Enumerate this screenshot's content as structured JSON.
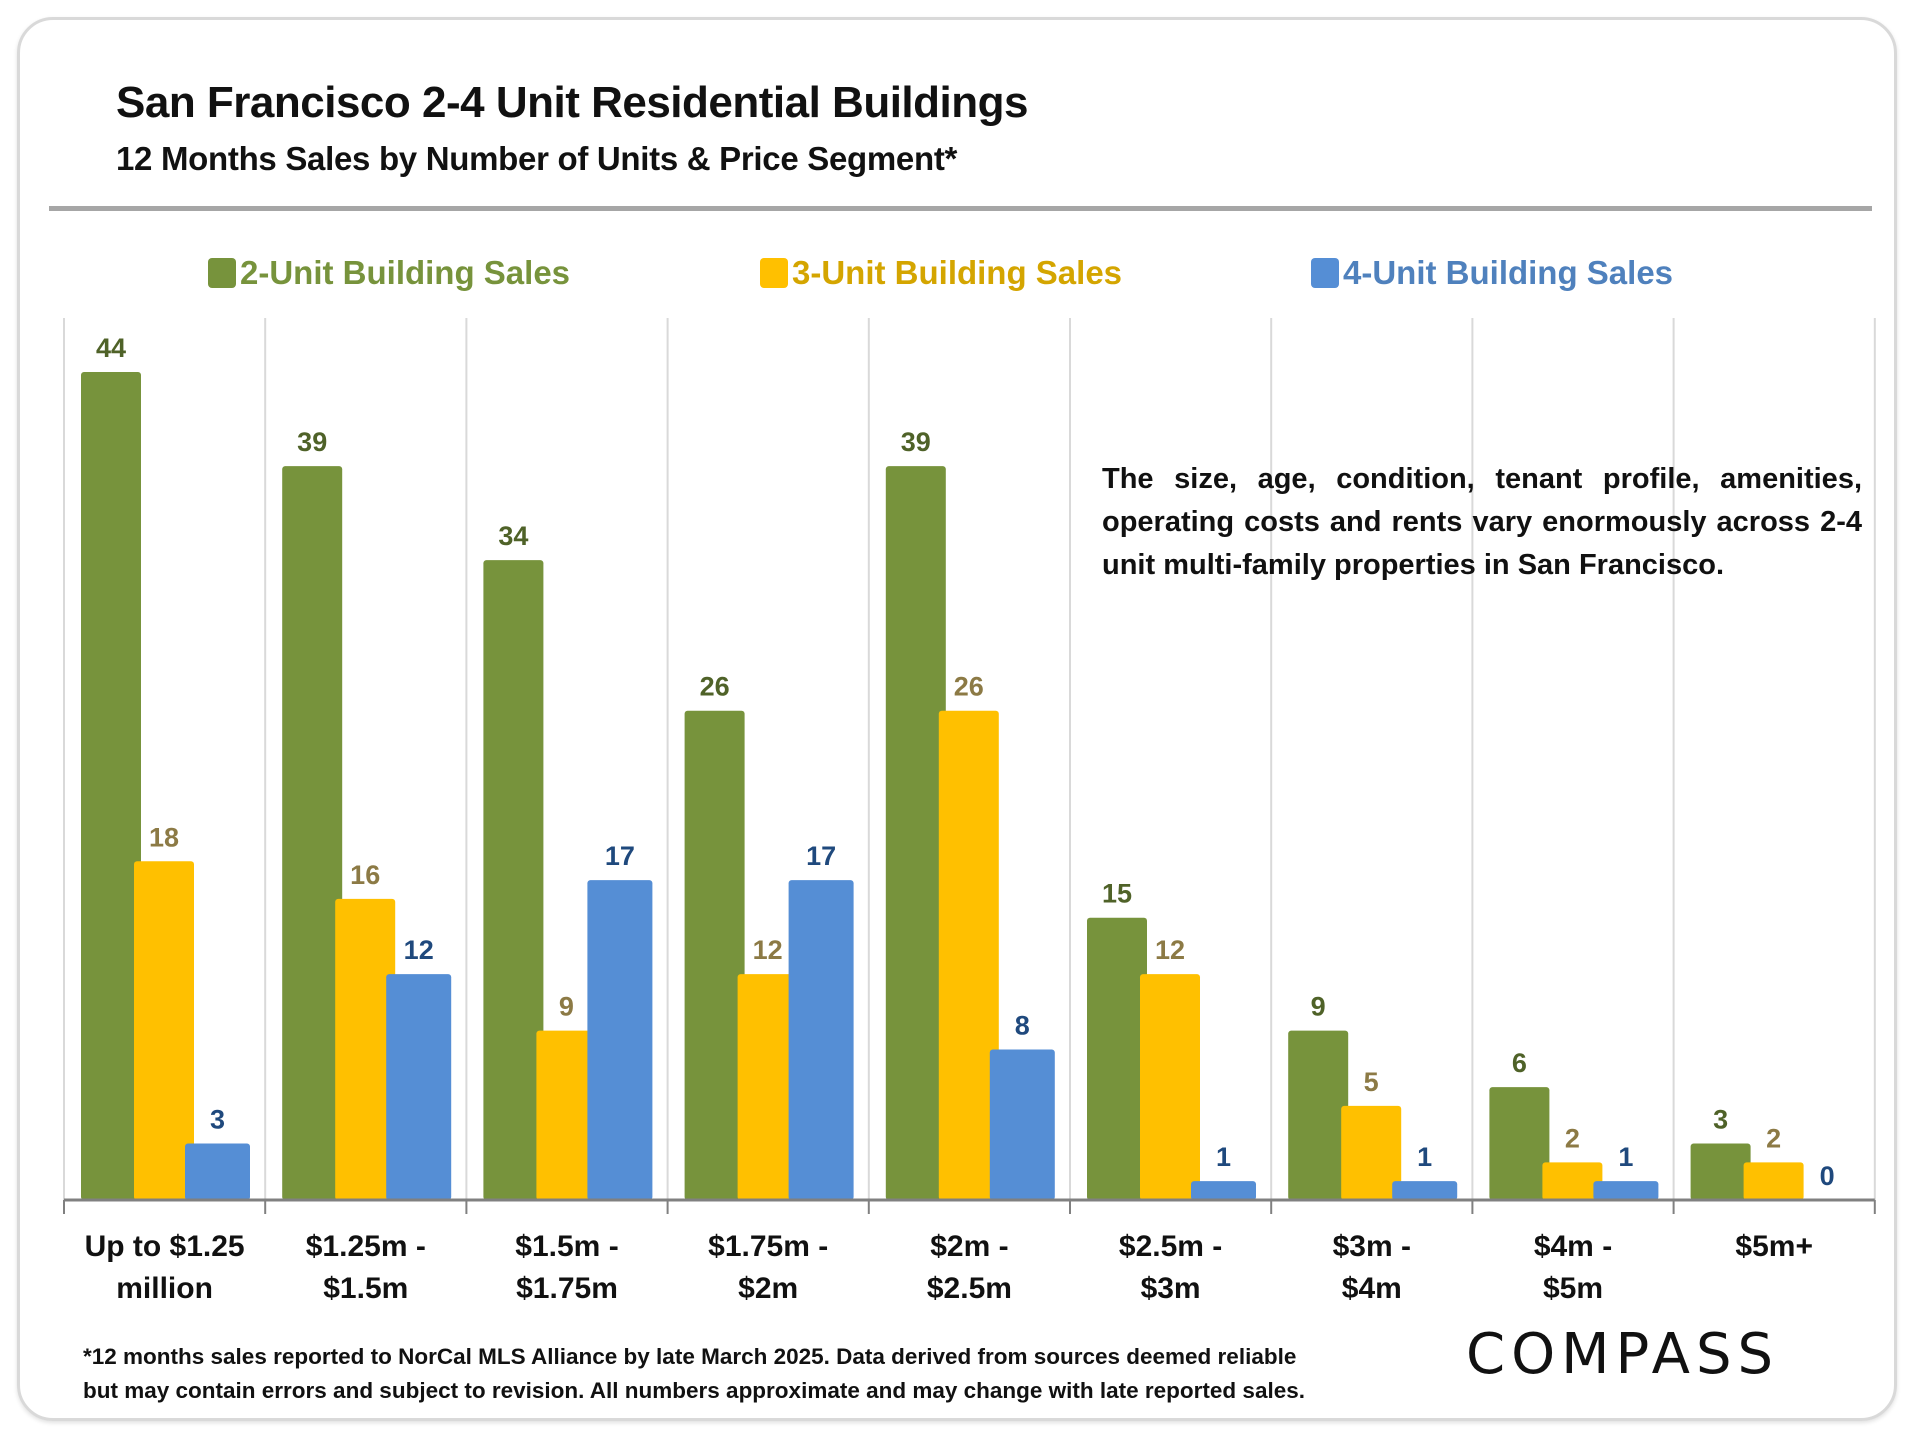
{
  "chart_data": {
    "type": "bar",
    "title": "San Francisco 2-4 Unit Residential Buildings",
    "subtitle": "12 Months Sales by Number of Units & Price Segment*",
    "xlabel": "",
    "ylabel": "",
    "ylim": [
      0,
      44
    ],
    "grid": "vertical category separators",
    "legend_placement": "top",
    "categories": [
      [
        "Up to $1.25",
        "million"
      ],
      [
        "$1.25m -",
        "$1.5m"
      ],
      [
        "$1.5m -",
        "$1.75m"
      ],
      [
        "$1.75m -",
        "$2m"
      ],
      [
        "$2m -",
        "$2.5m"
      ],
      [
        "$2.5m -",
        "$3m"
      ],
      [
        "$3m -",
        "$4m"
      ],
      [
        "$4m -",
        "$5m"
      ],
      [
        "$5m+",
        ""
      ]
    ],
    "series": [
      {
        "name": "2-Unit Building Sales",
        "color": "#77933c",
        "label_color": "#4f6228",
        "legend_color": "#77933c",
        "values": [
          44,
          39,
          34,
          26,
          39,
          15,
          9,
          6,
          3
        ]
      },
      {
        "name": "3-Unit Building Sales",
        "color": "#ffc000",
        "label_color": "#8c7a45",
        "legend_color": "#d4a500",
        "values": [
          18,
          16,
          9,
          12,
          26,
          12,
          5,
          2,
          2
        ]
      },
      {
        "name": "4-Unit Building Sales",
        "color": "#558ed5",
        "label_color": "#1f497d",
        "legend_color": "#4f81bd",
        "values": [
          3,
          12,
          17,
          17,
          8,
          1,
          1,
          1,
          0
        ]
      }
    ],
    "annotation": "The size, age, condition, tenant profile, amenities, operating costs and rents vary enormously across 2-4 unit multi-family properties in San Francisco."
  },
  "footnote": [
    "*12 months sales reported to NorCal MLS Alliance by late March 2025. Data derived from sources deemed reliable",
    "but may contain errors and subject to revision. All numbers approximate and may change with late reported sales."
  ],
  "brand": "COMPASS"
}
